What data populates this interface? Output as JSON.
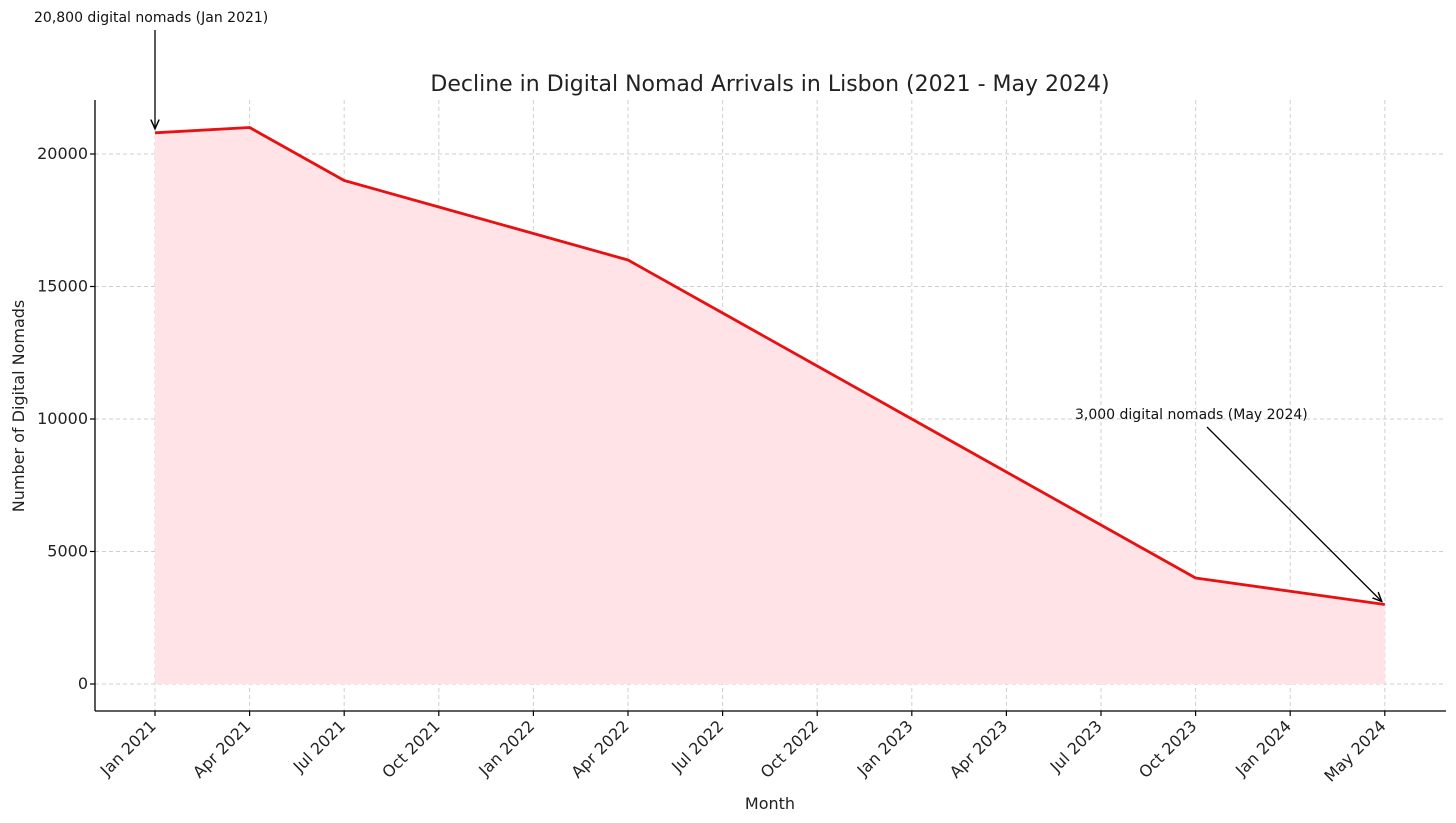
{
  "chart_data": {
    "type": "area",
    "title": "Decline in Digital Nomad Arrivals in Lisbon (2021 - May 2024)",
    "xlabel": "Month",
    "ylabel": "Number of Digital Nomads",
    "x_ticks": [
      "Jan 2021",
      "Apr 2021",
      "Jul 2021",
      "Oct 2021",
      "Jan 2022",
      "Apr 2022",
      "Jul 2022",
      "Oct 2022",
      "Jan 2023",
      "Apr 2023",
      "Jul 2023",
      "Oct 2023",
      "Jan 2024",
      "May 2024"
    ],
    "y_ticks": [
      0,
      5000,
      10000,
      15000,
      20000
    ],
    "ylim": [
      -1000,
      22000
    ],
    "grid": true,
    "series": [
      {
        "x": [
          "Jan 2021",
          "Apr 2021",
          "Jul 2021",
          "Oct 2021",
          "Jan 2022",
          "Apr 2022",
          "Jul 2022",
          "Oct 2022",
          "Jan 2023",
          "Apr 2023",
          "Jul 2023",
          "Oct 2023",
          "Jan 2024",
          "May 2024"
        ],
        "values": [
          20800,
          21000,
          19000,
          18000,
          17000,
          16000,
          14000,
          12000,
          10000,
          8000,
          6000,
          4000,
          3500,
          3000
        ],
        "line_color": "#e81010",
        "fill_color": "#ffe3e6"
      }
    ],
    "annotations": [
      {
        "text": "20,800 digital nomads (Jan 2021)",
        "x": "Jan 2021",
        "y": 20800
      },
      {
        "text": "3,000 digital nomads (May 2024)",
        "x": "May 2024",
        "y": 3000
      }
    ]
  }
}
